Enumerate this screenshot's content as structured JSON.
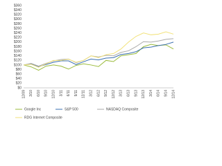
{
  "chart_data": {
    "type": "line",
    "categories": [
      "12/09",
      "3/10",
      "6/10",
      "9/10",
      "12/10",
      "3/11",
      "6/11",
      "9/11",
      "12/11",
      "3/12",
      "6/12",
      "9/12",
      "12/12",
      "3/13",
      "6/13",
      "9/13",
      "12/13",
      "3/14",
      "6/14",
      "9/14",
      "12/14"
    ],
    "series": [
      {
        "name": "Google Inc",
        "color": "#9bbb3b",
        "values": [
          100,
          92,
          77,
          95,
          100,
          95,
          82,
          98,
          105,
          100,
          93,
          120,
          115,
          140,
          145,
          150,
          180,
          190,
          185,
          188,
          170
        ]
      },
      {
        "name": "S&P 500",
        "color": "#3a6fb0",
        "values": [
          100,
          105,
          92,
          102,
          112,
          118,
          118,
          102,
          114,
          126,
          122,
          130,
          132,
          146,
          150,
          158,
          175,
          178,
          185,
          190,
          200
        ]
      },
      {
        "name": "NASDAQ Composite",
        "color": "#aaaaaa",
        "values": [
          100,
          107,
          95,
          107,
          118,
          124,
          126,
          110,
          120,
          140,
          135,
          142,
          140,
          155,
          162,
          180,
          202,
          200,
          205,
          212,
          215
        ]
      },
      {
        "name": "RDG Internet Composite",
        "color": "#f2e27a",
        "values": [
          100,
          103,
          90,
          105,
          120,
          120,
          125,
          112,
          120,
          140,
          132,
          145,
          150,
          170,
          200,
          225,
          240,
          232,
          235,
          245,
          235
        ]
      }
    ],
    "ylim": [
      0,
      360
    ],
    "yticks": [
      {
        "value": 0,
        "label": "$0"
      },
      {
        "value": 20,
        "label": "$20"
      },
      {
        "value": 40,
        "label": "$40"
      },
      {
        "value": 60,
        "label": "$60"
      },
      {
        "value": 80,
        "label": "$80"
      },
      {
        "value": 100,
        "label": "$100"
      },
      {
        "value": 120,
        "label": "$120"
      },
      {
        "value": 140,
        "label": "$140"
      },
      {
        "value": 160,
        "label": "$160"
      },
      {
        "value": 180,
        "label": "$180"
      },
      {
        "value": 200,
        "label": "$200"
      },
      {
        "value": 220,
        "label": "$220"
      },
      {
        "value": 240,
        "label": "$240"
      },
      {
        "value": 260,
        "label": "$260"
      },
      {
        "value": 280,
        "label": "$280"
      },
      {
        "value": 300,
        "label": "$300"
      },
      {
        "value": 320,
        "label": "$320"
      },
      {
        "value": 340,
        "label": "$340"
      },
      {
        "value": 360,
        "label": "$360"
      }
    ],
    "grid": false
  }
}
